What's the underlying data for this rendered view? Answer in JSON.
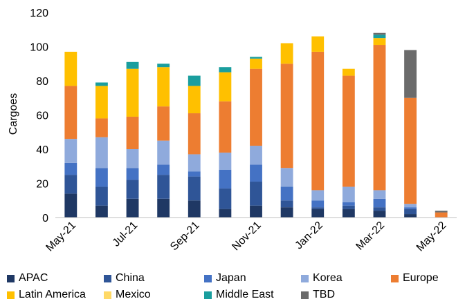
{
  "chart_data": {
    "type": "bar",
    "stacked": true,
    "categories": [
      "May-21",
      "Jun-21",
      "Jul-21",
      "Aug-21",
      "Sep-21",
      "Oct-21",
      "Nov-21",
      "Dec-21",
      "Jan-22",
      "Feb-22",
      "Mar-22",
      "Apr-22",
      "May-22"
    ],
    "tick_labels": [
      "May-21",
      "",
      "Jul-21",
      "",
      "Sep-21",
      "",
      "Nov-21",
      "",
      "Jan-22",
      "",
      "Mar-22",
      "",
      "May-22"
    ],
    "ylabel": "Cargoes",
    "ylim": [
      0,
      120
    ],
    "yticks": [
      0,
      20,
      40,
      60,
      80,
      100,
      120
    ],
    "grid": false,
    "legend_position": "bottom",
    "series": [
      {
        "name": "APAC",
        "color": "#1f3864",
        "values": [
          14,
          7,
          11,
          11,
          10,
          5,
          7,
          6,
          5,
          5,
          4,
          2,
          0
        ]
      },
      {
        "name": "China",
        "color": "#2f5597",
        "values": [
          11,
          11,
          11,
          14,
          14,
          12,
          14,
          4,
          1,
          2,
          2,
          3,
          0
        ]
      },
      {
        "name": "Japan",
        "color": "#4472c4",
        "values": [
          7,
          11,
          7,
          6,
          3,
          11,
          10,
          8,
          4,
          2,
          5,
          1,
          0
        ]
      },
      {
        "name": "Korea",
        "color": "#8faadc",
        "values": [
          14,
          18,
          11,
          14,
          10,
          10,
          11,
          11,
          6,
          9,
          5,
          2,
          0
        ]
      },
      {
        "name": "Europe",
        "color": "#ed7d31",
        "values": [
          31,
          11,
          19,
          20,
          24,
          30,
          45,
          61,
          81,
          65,
          85,
          62,
          3
        ]
      },
      {
        "name": "Latin America",
        "color": "#ffc000",
        "values": [
          20,
          19,
          28,
          23,
          16,
          17,
          6,
          12,
          9,
          4,
          4,
          0,
          0
        ]
      },
      {
        "name": "Mexico",
        "color": "#ffd966",
        "values": [
          0,
          0,
          0,
          0,
          0,
          0,
          0,
          0,
          0,
          0,
          0,
          0,
          0
        ]
      },
      {
        "name": "Middle East",
        "color": "#1a9e9e",
        "values": [
          0,
          2,
          4,
          2,
          6,
          3,
          1,
          0,
          0,
          0,
          2,
          0,
          0
        ]
      },
      {
        "name": "TBD",
        "color": "#6b6b6b",
        "values": [
          0,
          0,
          0,
          0,
          0,
          0,
          0,
          0,
          0,
          0,
          1,
          28,
          1
        ]
      }
    ]
  }
}
